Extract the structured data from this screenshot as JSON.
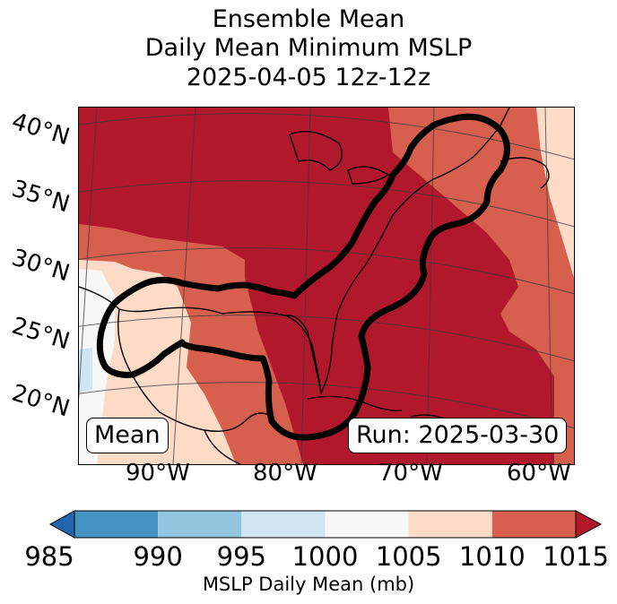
{
  "title": {
    "line1": "Ensemble Mean",
    "line2": "Daily Mean Minimum MSLP",
    "line3": "2025-04-05 12z-12z"
  },
  "map": {
    "lat_labels": [
      "40°N",
      "35°N",
      "30°N",
      "25°N",
      "20°N"
    ],
    "lon_labels": [
      "90°W",
      "80°W",
      "70°W",
      "60°W"
    ],
    "mean_label": "Mean",
    "run_label": "Run: 2025-03-30"
  },
  "colorbar": {
    "levels": [
      985,
      990,
      995,
      1000,
      1005,
      1010,
      1015
    ],
    "tick_labels": [
      "985",
      "990",
      "995",
      "1000",
      "1005",
      "1010",
      "1015"
    ],
    "colors": [
      "#4393c3",
      "#92c5de",
      "#d1e5f0",
      "#f7f7f7",
      "#fddbc7",
      "#d6604d"
    ],
    "under_color": "#2166ac",
    "over_color": "#b2182b",
    "label": "MSLP Daily Mean (mb)"
  },
  "colors": {
    "high": "#b2182b",
    "mid_high": "#d6604d",
    "low_high": "#fddbc7",
    "neutral": "#f7f7f7",
    "low": "#d1e5f0"
  }
}
